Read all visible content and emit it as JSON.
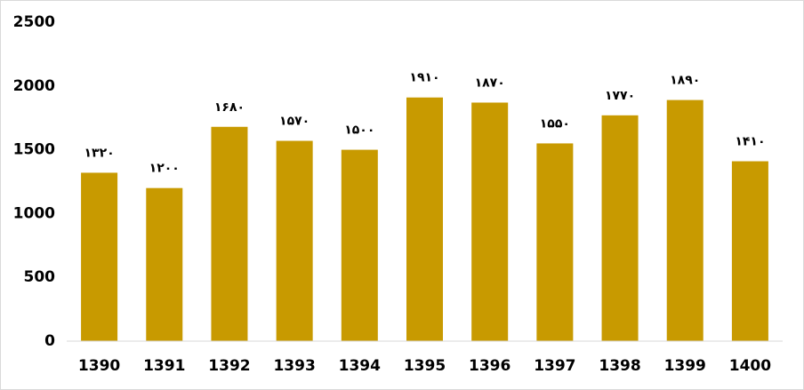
{
  "chart_data": {
    "type": "bar",
    "categories": [
      "1390",
      "1391",
      "1392",
      "1393",
      "1394",
      "1395",
      "1396",
      "1397",
      "1398",
      "1399",
      "1400"
    ],
    "values": [
      1320,
      1200,
      1680,
      1570,
      1500,
      1910,
      1870,
      1550,
      1770,
      1890,
      1410
    ],
    "value_labels": [
      "۱۳۲۰",
      "۱۲۰۰",
      "۱۶۸۰",
      "۱۵۷۰",
      "۱۵۰۰",
      "۱۹۱۰",
      "۱۸۷۰",
      "۱۵۵۰",
      "۱۷۷۰",
      "۱۸۹۰",
      "۱۴۱۰"
    ],
    "color": "#c89a00",
    "ylim": [
      0,
      2500
    ],
    "yticks": [
      0,
      500,
      1000,
      1500,
      2000,
      2500
    ],
    "grid": false
  }
}
